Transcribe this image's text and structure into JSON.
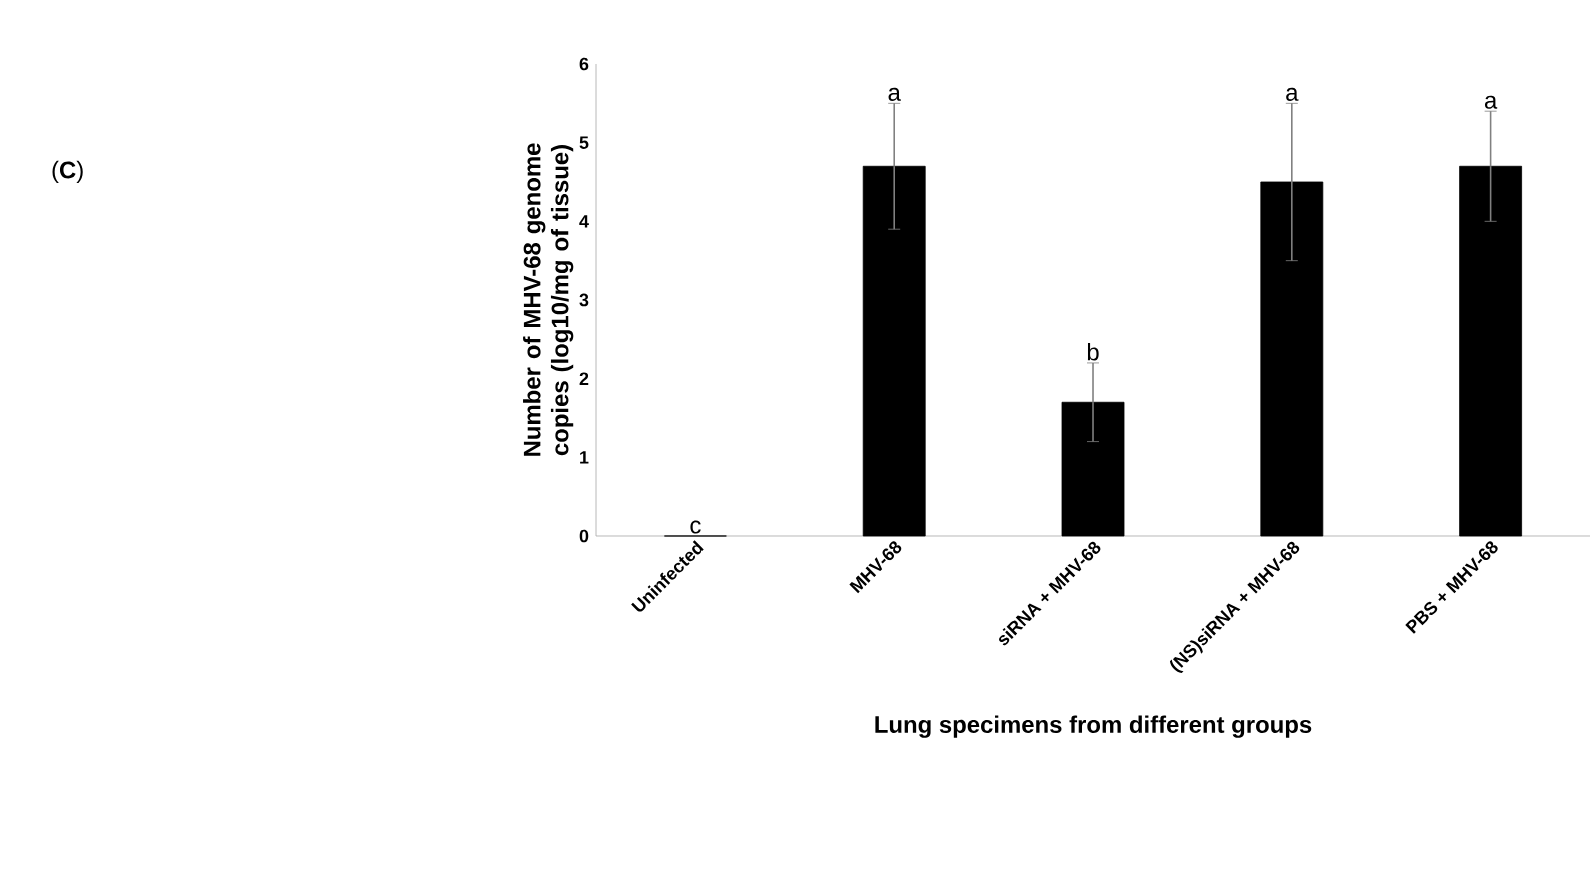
{
  "chart_data": {
    "type": "bar",
    "categories": [
      "Uninfected",
      "MHV-68",
      "siRNA + MHV-68",
      "(NS)siRNA + MHV-68",
      "PBS + MHV-68"
    ],
    "values": [
      0,
      4.7,
      1.7,
      4.5,
      4.7
    ],
    "errors": [
      null,
      [
        3.9,
        5.5
      ],
      [
        1.2,
        2.2
      ],
      [
        3.5,
        5.5
      ],
      [
        4.0,
        5.4
      ]
    ],
    "color": "#000000",
    "ylim": [
      0,
      6
    ],
    "yticks": [
      0,
      1,
      2,
      3,
      4,
      5,
      6
    ],
    "xlabel": "Lung specimens from different groups",
    "ylabel": "Number of MHV-68 genome copies (log10/mg of tissue)",
    "annotations": [
      "(**C**)",
      "c",
      "a",
      "b",
      "a",
      "a"
    ],
    "grid": false
  }
}
